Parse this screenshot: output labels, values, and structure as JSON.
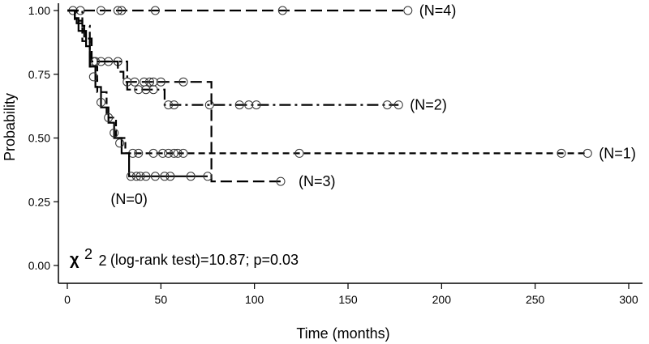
{
  "chart_data": {
    "type": "line",
    "subtype": "kaplan-meier",
    "title": "",
    "xlabel": "Time (months)",
    "ylabel": "Probability",
    "xlim": [
      0,
      300
    ],
    "ylim": [
      0.0,
      1.0
    ],
    "x_ticks": [
      "0",
      "50",
      "100",
      "150",
      "200",
      "250",
      "300"
    ],
    "y_ticks": [
      "0.00",
      "0.25",
      "0.50",
      "0.75",
      "1.00"
    ],
    "grid": false,
    "annotation": {
      "symbol": "χ",
      "superscript": "2",
      "subscript": "2",
      "text": " (log-rank test)=10.87; p=0.03"
    },
    "series": [
      {
        "name": "(N=4)",
        "line_style": "long-dash",
        "steps": [
          [
            0,
            1.0
          ],
          [
            182,
            1.0
          ]
        ],
        "censored": [
          [
            3,
            1.0
          ],
          [
            7,
            1.0
          ],
          [
            18,
            1.0
          ],
          [
            27,
            1.0
          ],
          [
            29,
            1.0
          ],
          [
            47,
            1.0
          ],
          [
            115,
            1.0
          ],
          [
            182,
            1.0
          ]
        ]
      },
      {
        "name": "(N=2)",
        "line_style": "dash-dot",
        "steps": [
          [
            0,
            1.0
          ],
          [
            8,
            1.0
          ],
          [
            8,
            0.94
          ],
          [
            12,
            0.94
          ],
          [
            12,
            0.8
          ],
          [
            32,
            0.8
          ],
          [
            32,
            0.69
          ],
          [
            52,
            0.69
          ],
          [
            52,
            0.63
          ],
          [
            177,
            0.63
          ]
        ],
        "censored": [
          [
            14,
            0.8
          ],
          [
            18,
            0.8
          ],
          [
            22,
            0.8
          ],
          [
            27,
            0.8
          ],
          [
            38,
            0.69
          ],
          [
            42,
            0.69
          ],
          [
            46,
            0.69
          ],
          [
            54,
            0.63
          ],
          [
            57,
            0.63
          ],
          [
            76,
            0.63
          ],
          [
            92,
            0.63
          ],
          [
            97,
            0.63
          ],
          [
            101,
            0.63
          ],
          [
            171,
            0.63
          ],
          [
            177,
            0.63
          ]
        ]
      },
      {
        "name": "(N=1)",
        "line_style": "dash",
        "steps": [
          [
            0,
            1.0
          ],
          [
            4,
            1.0
          ],
          [
            4,
            0.96
          ],
          [
            8,
            0.96
          ],
          [
            8,
            0.88
          ],
          [
            12,
            0.88
          ],
          [
            12,
            0.78
          ],
          [
            16,
            0.78
          ],
          [
            16,
            0.68
          ],
          [
            21,
            0.68
          ],
          [
            21,
            0.58
          ],
          [
            26,
            0.58
          ],
          [
            26,
            0.5
          ],
          [
            31,
            0.5
          ],
          [
            31,
            0.44
          ],
          [
            278,
            0.44
          ]
        ],
        "censored": [
          [
            35,
            0.44
          ],
          [
            38,
            0.44
          ],
          [
            46,
            0.44
          ],
          [
            51,
            0.44
          ],
          [
            54,
            0.44
          ],
          [
            57,
            0.44
          ],
          [
            59,
            0.44
          ],
          [
            62,
            0.44
          ],
          [
            124,
            0.44
          ],
          [
            264,
            0.44
          ],
          [
            278,
            0.44
          ]
        ]
      },
      {
        "name": "(N=3)",
        "line_style": "long-dash",
        "steps": [
          [
            0,
            1.0
          ],
          [
            5,
            1.0
          ],
          [
            5,
            0.95
          ],
          [
            9,
            0.95
          ],
          [
            9,
            0.89
          ],
          [
            13,
            0.89
          ],
          [
            13,
            0.8
          ],
          [
            27,
            0.8
          ],
          [
            27,
            0.76
          ],
          [
            30,
            0.76
          ],
          [
            30,
            0.72
          ],
          [
            77,
            0.72
          ],
          [
            77,
            0.33
          ],
          [
            114,
            0.33
          ]
        ],
        "censored": [
          [
            15,
            0.8
          ],
          [
            32,
            0.72
          ],
          [
            36,
            0.72
          ],
          [
            41,
            0.72
          ],
          [
            44,
            0.72
          ],
          [
            46,
            0.72
          ],
          [
            50,
            0.72
          ],
          [
            62,
            0.72
          ],
          [
            114,
            0.33
          ]
        ]
      },
      {
        "name": "(N=0)",
        "line_style": "solid",
        "steps": [
          [
            0,
            1.0
          ],
          [
            4,
            1.0
          ],
          [
            4,
            0.97
          ],
          [
            6,
            0.97
          ],
          [
            6,
            0.92
          ],
          [
            10,
            0.92
          ],
          [
            10,
            0.86
          ],
          [
            12,
            0.86
          ],
          [
            12,
            0.78
          ],
          [
            15,
            0.78
          ],
          [
            15,
            0.7
          ],
          [
            18,
            0.7
          ],
          [
            18,
            0.62
          ],
          [
            22,
            0.62
          ],
          [
            22,
            0.56
          ],
          [
            25,
            0.56
          ],
          [
            25,
            0.5
          ],
          [
            29,
            0.5
          ],
          [
            29,
            0.44
          ],
          [
            33,
            0.44
          ],
          [
            33,
            0.35
          ],
          [
            75,
            0.35
          ]
        ],
        "censored": [
          [
            14,
            0.74
          ],
          [
            18,
            0.64
          ],
          [
            22,
            0.58
          ],
          [
            25,
            0.52
          ],
          [
            28,
            0.48
          ],
          [
            34,
            0.35
          ],
          [
            37,
            0.35
          ],
          [
            39,
            0.35
          ],
          [
            42,
            0.35
          ],
          [
            47,
            0.35
          ],
          [
            52,
            0.35
          ],
          [
            55,
            0.35
          ],
          [
            66,
            0.35
          ],
          [
            75,
            0.35
          ]
        ]
      }
    ]
  }
}
